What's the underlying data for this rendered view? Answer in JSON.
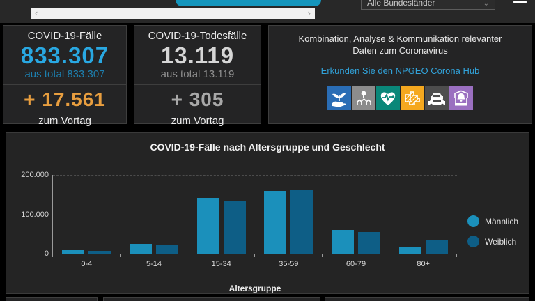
{
  "topbar": {
    "scrollbar_left": "‹",
    "scrollbar_right": "›",
    "dropdown_value": "Alle Bundesländer",
    "dropdown_chevron": "⌄"
  },
  "stats": {
    "cases": {
      "title": "COVID-19-Fälle",
      "count": "833.307",
      "count_color": "#29a8e2",
      "subtotal": "aus total 833.307",
      "subtotal_color": "#1d7fae",
      "delta": "+ 17.561",
      "delta_color": "#e89e3f",
      "delta_label": "zum Vortag"
    },
    "deaths": {
      "title": "COVID-19-Todesfälle",
      "count": "13.119",
      "count_color": "#d6d6d6",
      "subtotal": "aus total 13.119",
      "subtotal_color": "#8f8f8f",
      "delta": "+ 305",
      "delta_color": "#a8a8a8",
      "delta_label": "zum Vortag"
    },
    "info": {
      "description": "Kombination, Analyse & Kommunikation relevanter Daten zum Coronavirus",
      "link": "Erkunden Sie den NPGEO Corona Hub",
      "link_color": "#31a2d9",
      "icons": [
        {
          "name": "environment-hand-plant-icon",
          "color": "#2a6db5"
        },
        {
          "name": "location-housing-icon",
          "color": "#8c8c8c"
        },
        {
          "name": "health-heart-pulse-icon",
          "color": "#0a8779"
        },
        {
          "name": "boundaries-map-icon",
          "color": "#f5a81f"
        },
        {
          "name": "traffic-cars-icon",
          "color": "#4d4d4d"
        },
        {
          "name": "alert-bell-icon",
          "color": "#9a6fc0"
        }
      ]
    }
  },
  "chart_data": {
    "type": "bar",
    "title": "COVID-19-Fälle nach Altersgruppe und Geschlecht",
    "categories": [
      "0-4",
      "5-14",
      "15-34",
      "35-59",
      "60-79",
      "80+"
    ],
    "series": [
      {
        "name": "Männlich",
        "color": "#1b90bb",
        "values": [
          9000,
          25000,
          142000,
          159000,
          60000,
          18000
        ]
      },
      {
        "name": "Weiblich",
        "color": "#0e5e86",
        "values": [
          7000,
          22000,
          132000,
          162000,
          55000,
          34000
        ]
      }
    ],
    "xlabel": "Altersgruppe",
    "ylabel": "",
    "ylim": [
      0,
      200000
    ],
    "yticks": [
      {
        "value": 0,
        "label": "0"
      },
      {
        "value": 100000,
        "label": "100.000"
      },
      {
        "value": 200000,
        "label": "200.000"
      }
    ],
    "grid": "horizontal-dashed",
    "legend_position": "right"
  }
}
